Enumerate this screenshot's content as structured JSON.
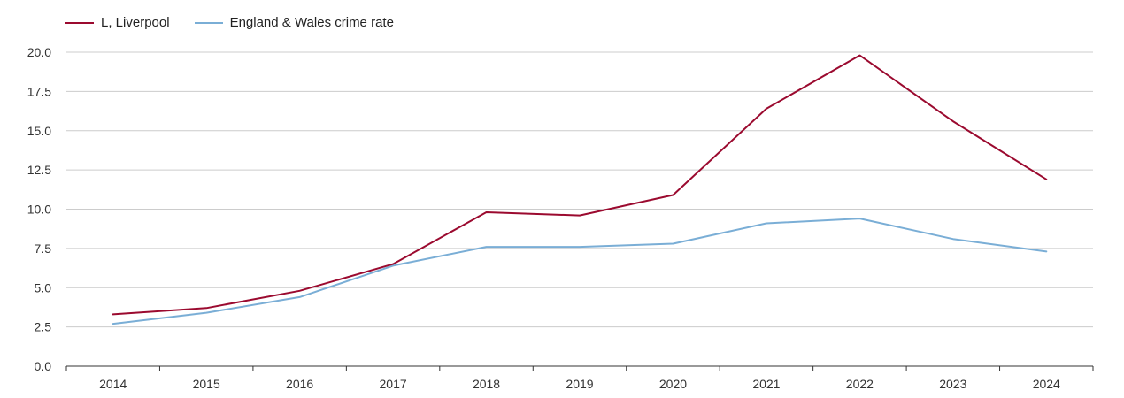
{
  "chart_data": {
    "type": "line",
    "categories": [
      "2014",
      "2015",
      "2016",
      "2017",
      "2018",
      "2019",
      "2020",
      "2021",
      "2022",
      "2023",
      "2024"
    ],
    "series": [
      {
        "name": "L, Liverpool",
        "color": "#9b0a2f",
        "values": [
          3.3,
          3.7,
          4.8,
          6.5,
          9.8,
          9.6,
          10.9,
          16.4,
          19.8,
          15.6,
          11.9
        ]
      },
      {
        "name": "England & Wales crime rate",
        "color": "#7aaed6",
        "values": [
          2.7,
          3.4,
          4.4,
          6.4,
          7.6,
          7.6,
          7.8,
          9.1,
          9.4,
          8.1,
          7.3
        ]
      }
    ],
    "yticks": [
      "0.0",
      "2.5",
      "5.0",
      "7.5",
      "10.0",
      "12.5",
      "15.0",
      "17.5",
      "20.0"
    ],
    "ylim": [
      0,
      20
    ],
    "grid": true,
    "legend_position": "top-left"
  }
}
